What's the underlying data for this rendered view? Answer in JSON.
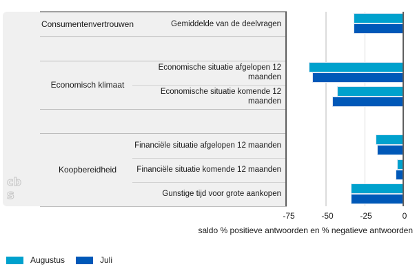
{
  "chart_data": {
    "type": "bar",
    "orientation": "horizontal",
    "groups": [
      {
        "label": "Consumentenvertrouwen"
      },
      {
        "label": "Economisch klimaat"
      },
      {
        "label": "Koopbereidheid"
      }
    ],
    "rows": [
      {
        "group": "Consumentenvertrouwen",
        "label": "Gemiddelde van de deelvragen",
        "label_lines": [
          "Gemiddelde van de deelvragen"
        ],
        "values": {
          "augustus": -32,
          "juli": -32
        }
      },
      {
        "group": "Economisch klimaat",
        "label": "Economische situatie afgelopen 12 maanden",
        "label_lines": [
          "Economische situatie afgelopen 12",
          "maanden"
        ],
        "values": {
          "augustus": -61,
          "juli": -59
        }
      },
      {
        "group": "Economisch klimaat",
        "label": "Economische situatie komende 12 maanden",
        "label_lines": [
          "Economische situatie komende 12",
          "maanden"
        ],
        "values": {
          "augustus": -43,
          "juli": -46
        }
      },
      {
        "group": "Koopbereidheid",
        "label": "Financiële situatie afgelopen 12 maanden",
        "label_lines": [
          "Financiële situatie afgelopen 12 maanden"
        ],
        "values": {
          "augustus": -18,
          "juli": -17
        }
      },
      {
        "group": "Koopbereidheid",
        "label": "Financiële situatie komende 12 maanden",
        "label_lines": [
          "Financiële situatie komende 12 maanden"
        ],
        "values": {
          "augustus": -4,
          "juli": -5
        }
      },
      {
        "group": "Koopbereidheid",
        "label": "Gunstige tijd voor grote aankopen",
        "label_lines": [
          "Gunstige tijd voor grote aankopen"
        ],
        "values": {
          "augustus": -34,
          "juli": -34
        }
      }
    ],
    "x_axis": {
      "min": -75,
      "max": 0,
      "ticks": [
        "-75",
        "-50",
        "-25",
        "0"
      ],
      "label": "saldo % positieve antwoorden en % negatieve antwoorden"
    },
    "series_colors": {
      "augustus": "#00a1cd",
      "juli": "#0058b8"
    },
    "legend": [
      {
        "label": "Augustus",
        "color": "#00a1cd"
      },
      {
        "label": "Juli",
        "color": "#0058b8"
      }
    ],
    "legend_position": "bottom-left",
    "grid": true
  },
  "logo": {
    "line1": "cb",
    "line2": "s"
  }
}
